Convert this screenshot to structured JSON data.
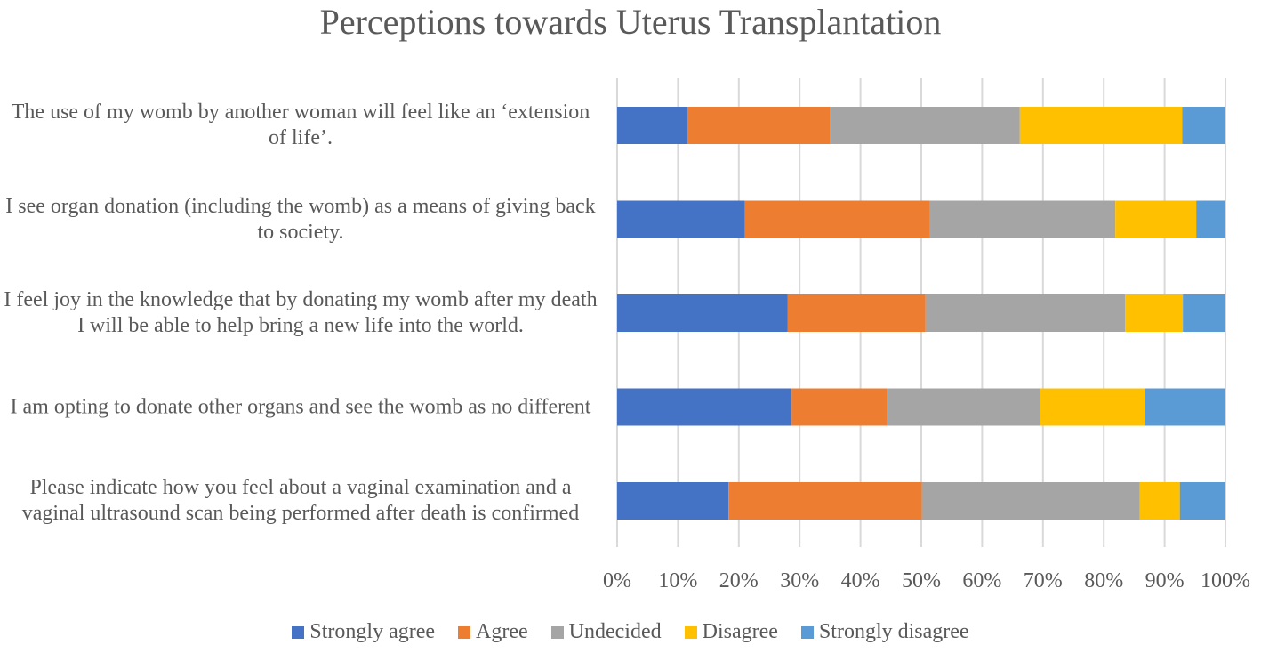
{
  "chart_data": {
    "type": "bar",
    "orientation": "horizontal",
    "stacked": "percent",
    "title": "Perceptions towards Uterus Transplantation",
    "categories": [
      "The use of my womb by another woman will feel like an ‘extension of life’.",
      "I see organ donation (including the womb) as a means of giving back to society.",
      "I feel joy in the knowledge that by donating my womb after my death I will be able to help bring a new life into the world.",
      "I am opting to donate other organs and see the womb as no different",
      "Please indicate how you feel about a vaginal examination and a vaginal ultrasound scan being performed after death is confirmed"
    ],
    "series": [
      {
        "name": "Strongly agree",
        "color": "#4472C4",
        "values": [
          11.6,
          21.0,
          28.0,
          28.7,
          18.3
        ]
      },
      {
        "name": "Agree",
        "color": "#ED7D31",
        "values": [
          23.4,
          30.4,
          22.7,
          15.7,
          31.8
        ]
      },
      {
        "name": "Undecided",
        "color": "#A5A5A5",
        "values": [
          31.2,
          30.5,
          32.8,
          25.1,
          35.8
        ]
      },
      {
        "name": "Disagree",
        "color": "#FFC000",
        "values": [
          26.7,
          13.3,
          9.5,
          17.2,
          6.6
        ]
      },
      {
        "name": "Strongly disagree",
        "color": "#5B9BD5",
        "values": [
          7.1,
          4.8,
          7.0,
          13.3,
          7.5
        ]
      }
    ],
    "xlim": [
      0,
      100
    ],
    "xticks": [
      "0%",
      "10%",
      "20%",
      "30%",
      "40%",
      "50%",
      "60%",
      "70%",
      "80%",
      "90%",
      "100%"
    ],
    "grid": true,
    "legend": "bottom",
    "xlabel": "",
    "ylabel": ""
  }
}
